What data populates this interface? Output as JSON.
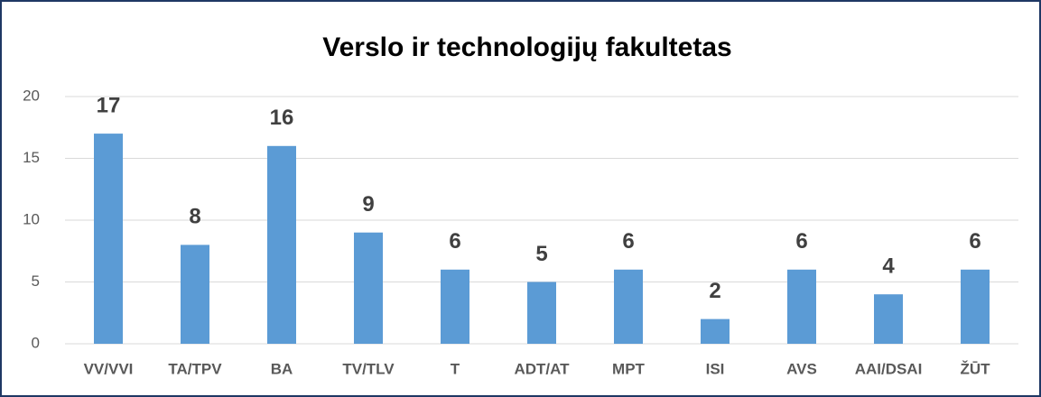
{
  "chart_data": {
    "type": "bar",
    "title": "Verslo ir technologijų fakultetas",
    "categories": [
      "VV/VVI",
      "TA/TPV",
      "BA",
      "TV/TLV",
      "T",
      "ADT/AT",
      "MPT",
      "ISI",
      "AVS",
      "AAI/DSAI",
      "ŽŪT"
    ],
    "values": [
      17,
      8,
      16,
      9,
      6,
      5,
      6,
      2,
      6,
      4,
      6
    ],
    "color": "#5b9bd5",
    "ylim": [
      0,
      20
    ],
    "yticks": [
      0,
      5,
      10,
      15,
      20
    ],
    "grid": true
  }
}
